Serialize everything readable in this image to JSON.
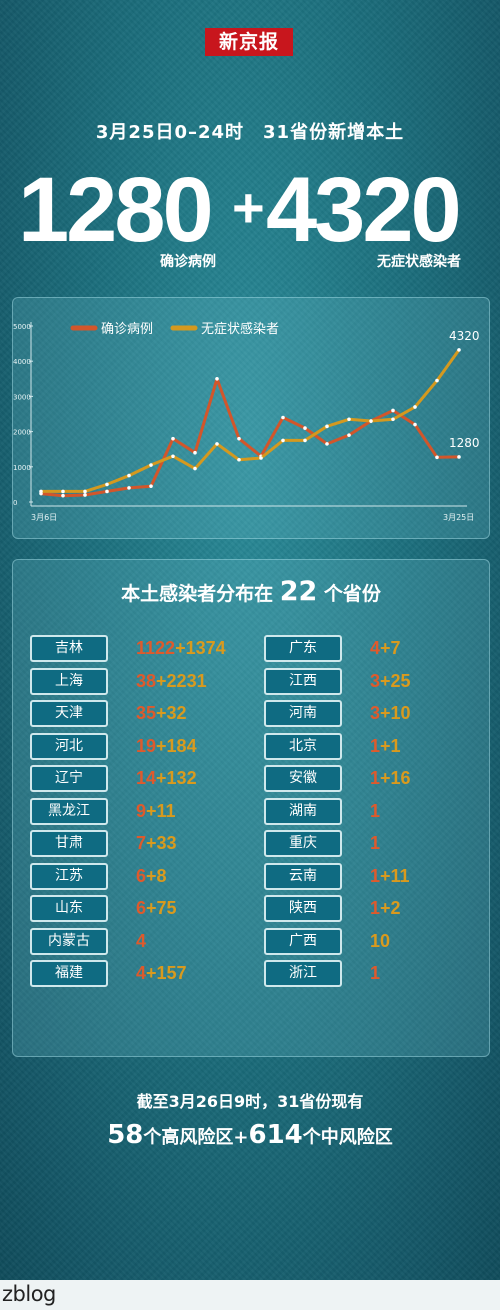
{
  "brand": "新京报",
  "headline": "3月25日0–24时　31省份新增本土",
  "big": {
    "confirmed": "1280",
    "plus": "+",
    "asymptomatic": "4320"
  },
  "captions": {
    "confirmed": "确诊病例",
    "asymptomatic": "无症状感染者"
  },
  "chart_data": {
    "type": "line",
    "x": [
      "3月6日",
      "3月7日",
      "3月8日",
      "3月9日",
      "3月10日",
      "3月11日",
      "3月12日",
      "3月13日",
      "3月14日",
      "3月15日",
      "3月16日",
      "3月17日",
      "3月18日",
      "3月19日",
      "3月20日",
      "3月21日",
      "3月22日",
      "3月23日",
      "3月24日",
      "3月25日"
    ],
    "x_tick_labels": {
      "first": "3月6日",
      "last": "3月25日"
    },
    "yticks": [
      "0",
      "1000",
      "2000",
      "3000",
      "4000",
      "5000"
    ],
    "ylim": [
      0,
      5000
    ],
    "series": [
      {
        "name": "确诊病例",
        "color": "#d2562b",
        "values": [
          240,
          180,
          200,
          300,
          400,
          450,
          1800,
          1400,
          3500,
          1800,
          1300,
          2400,
          2100,
          1650,
          1900,
          2300,
          2600,
          2200,
          1270,
          1280
        ]
      },
      {
        "name": "无症状感染者",
        "color": "#d4991f",
        "values": [
          300,
          300,
          300,
          500,
          750,
          1050,
          1300,
          950,
          1650,
          1200,
          1250,
          1750,
          1750,
          2150,
          2350,
          2300,
          2350,
          2700,
          3450,
          4320
        ]
      }
    ],
    "end_labels": [
      "4320",
      "1280"
    ],
    "legend": "top-left"
  },
  "distribution": {
    "title_pre": "本土感染者分布在",
    "title_num": "22",
    "title_post": "个省份",
    "left": [
      {
        "name": "吉林",
        "confirmed": "1122",
        "asymptomatic": "1374"
      },
      {
        "name": "上海",
        "confirmed": "38",
        "asymptomatic": "2231"
      },
      {
        "name": "天津",
        "confirmed": "35",
        "asymptomatic": "32"
      },
      {
        "name": "河北",
        "confirmed": "19",
        "asymptomatic": "184"
      },
      {
        "name": "辽宁",
        "confirmed": "14",
        "asymptomatic": "132"
      },
      {
        "name": "黑龙江",
        "confirmed": "9",
        "asymptomatic": "11"
      },
      {
        "name": "甘肃",
        "confirmed": "7",
        "asymptomatic": "33"
      },
      {
        "name": "江苏",
        "confirmed": "6",
        "asymptomatic": "8"
      },
      {
        "name": "山东",
        "confirmed": "6",
        "asymptomatic": "75"
      },
      {
        "name": "内蒙古",
        "confirmed": "4",
        "asymptomatic": ""
      },
      {
        "name": "福建",
        "confirmed": "4",
        "asymptomatic": "157"
      }
    ],
    "right": [
      {
        "name": "广东",
        "confirmed": "4",
        "asymptomatic": "7"
      },
      {
        "name": "江西",
        "confirmed": "3",
        "asymptomatic": "25"
      },
      {
        "name": "河南",
        "confirmed": "3",
        "asymptomatic": "10"
      },
      {
        "name": "北京",
        "confirmed": "1",
        "asymptomatic": "1"
      },
      {
        "name": "安徽",
        "confirmed": "1",
        "asymptomatic": "16"
      },
      {
        "name": "湖南",
        "confirmed": "1",
        "asymptomatic": ""
      },
      {
        "name": "重庆",
        "confirmed": "1",
        "asymptomatic": ""
      },
      {
        "name": "云南",
        "confirmed": "1",
        "asymptomatic": "11"
      },
      {
        "name": "陕西",
        "confirmed": "1",
        "asymptomatic": "2"
      },
      {
        "name": "广西",
        "confirmed": "",
        "asymptomatic": "10"
      },
      {
        "name": "浙江",
        "confirmed": "1",
        "asymptomatic": ""
      }
    ]
  },
  "footer": {
    "line1": "截至3月26日9时，31省份现有",
    "high_num": "58",
    "high_text": "个高风险区+",
    "mid_num": "614",
    "mid_text": "个中风险区"
  },
  "watermark": "zblog"
}
